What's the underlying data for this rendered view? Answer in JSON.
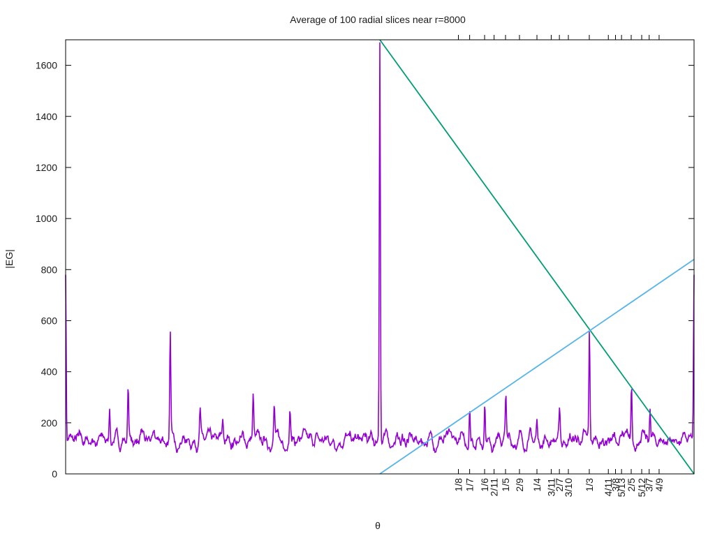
{
  "chart_data": {
    "type": "line",
    "title": "Average of 100 radial slices near r=8000",
    "xlabel": "θ",
    "ylabel": "|EG|",
    "xlim": [
      0,
      1
    ],
    "ylim": [
      0,
      1700
    ],
    "yticks": [
      0,
      200,
      400,
      600,
      800,
      1000,
      1200,
      1400,
      1600
    ],
    "grid": false,
    "x_ticks": [
      {
        "label": "1/8",
        "x": 0.625
      },
      {
        "label": "1/7",
        "x": 0.6429
      },
      {
        "label": "1/6",
        "x": 0.6667
      },
      {
        "label": "2/11",
        "x": 0.6818
      },
      {
        "label": "1/5",
        "x": 0.7
      },
      {
        "label": "2/9",
        "x": 0.7222
      },
      {
        "label": "1/4",
        "x": 0.75
      },
      {
        "label": "3/11",
        "x": 0.7727
      },
      {
        "label": "2/7",
        "x": 0.7857
      },
      {
        "label": "3/10",
        "x": 0.8
      },
      {
        "label": "1/3",
        "x": 0.8333
      },
      {
        "label": "4/11",
        "x": 0.8636
      },
      {
        "label": "3/8",
        "x": 0.875
      },
      {
        "label": "5/13",
        "x": 0.8846
      },
      {
        "label": "2/5",
        "x": 0.9
      },
      {
        "label": "5/12",
        "x": 0.9167
      },
      {
        "label": "3/7",
        "x": 0.9286
      },
      {
        "label": "4/9",
        "x": 0.9444
      }
    ],
    "peaks": [
      {
        "x": 0.0,
        "y": 780
      },
      {
        "x": 0.07,
        "y": 255
      },
      {
        "x": 0.0995,
        "y": 348
      },
      {
        "x": 0.1665,
        "y": 565
      },
      {
        "x": 0.214,
        "y": 262
      },
      {
        "x": 0.25,
        "y": 215
      },
      {
        "x": 0.2985,
        "y": 318
      },
      {
        "x": 0.332,
        "y": 275
      },
      {
        "x": 0.357,
        "y": 255
      },
      {
        "x": 0.5,
        "y": 1690
      },
      {
        "x": 0.643,
        "y": 255
      },
      {
        "x": 0.667,
        "y": 275
      },
      {
        "x": 0.7005,
        "y": 318
      },
      {
        "x": 0.75,
        "y": 215
      },
      {
        "x": 0.786,
        "y": 262
      },
      {
        "x": 0.8335,
        "y": 565
      },
      {
        "x": 0.9005,
        "y": 348
      },
      {
        "x": 0.93,
        "y": 255
      },
      {
        "x": 1.0,
        "y": 780
      }
    ],
    "baseline_range": [
      85,
      185
    ],
    "series": [
      {
        "type": "noisy-peaks",
        "color": "#9400d3"
      },
      {
        "type": "line",
        "color": "#009e73",
        "x": [
          0.5,
          1.0
        ],
        "y": [
          1700,
          0
        ]
      },
      {
        "type": "line",
        "color": "#56b4e9",
        "x": [
          0.5,
          1.0
        ],
        "y": [
          0,
          840
        ]
      }
    ]
  }
}
